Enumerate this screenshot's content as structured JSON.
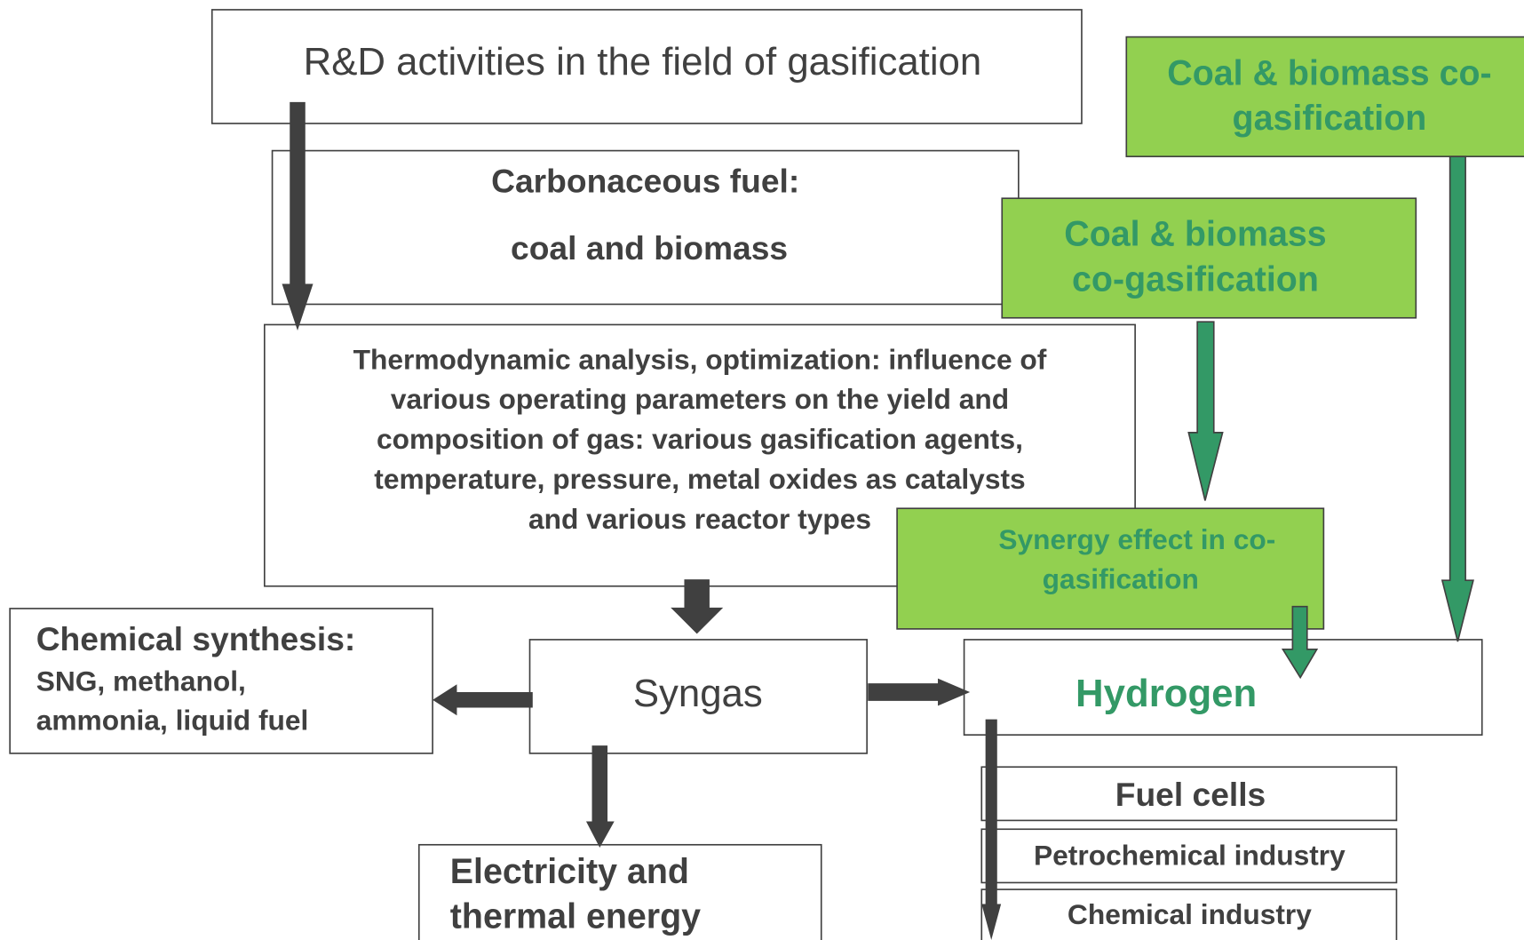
{
  "nodes": [
    {
      "id": "rd",
      "lines": [
        "R&D activities in the field of gasification"
      ]
    },
    {
      "id": "fuel",
      "lines": [
        "Carbonaceous fuel:",
        "coal and biomass"
      ]
    },
    {
      "id": "cogas1",
      "lines": [
        "Coal & biomass co-",
        "gasification"
      ]
    },
    {
      "id": "cogas2",
      "lines": [
        "Coal & biomass",
        "co-gasification"
      ]
    },
    {
      "id": "thermo",
      "lines": [
        "Thermodynamic analysis, optimization: influence of",
        "various operating parameters on the yield and",
        "composition of gas: various gasification agents,",
        "temperature, pressure, metal oxides as catalysts",
        "and various reactor types"
      ]
    },
    {
      "id": "synergy",
      "lines": [
        "Synergy effect in co-",
        "gasification"
      ]
    },
    {
      "id": "chem",
      "lines": [
        "Chemical synthesis:",
        "SNG, methanol,",
        "ammonia, liquid fuel"
      ]
    },
    {
      "id": "syngas",
      "lines": [
        "Syngas"
      ]
    },
    {
      "id": "hydrogen",
      "lines": [
        "Hydrogen"
      ]
    },
    {
      "id": "elec",
      "lines": [
        "Electricity and",
        "thermal energy"
      ]
    },
    {
      "id": "fuelcells",
      "lines": [
        "Fuel cells"
      ]
    },
    {
      "id": "petro",
      "lines": [
        "Petrochemical industry"
      ]
    },
    {
      "id": "chemind",
      "lines": [
        "Chemical industry"
      ]
    }
  ]
}
